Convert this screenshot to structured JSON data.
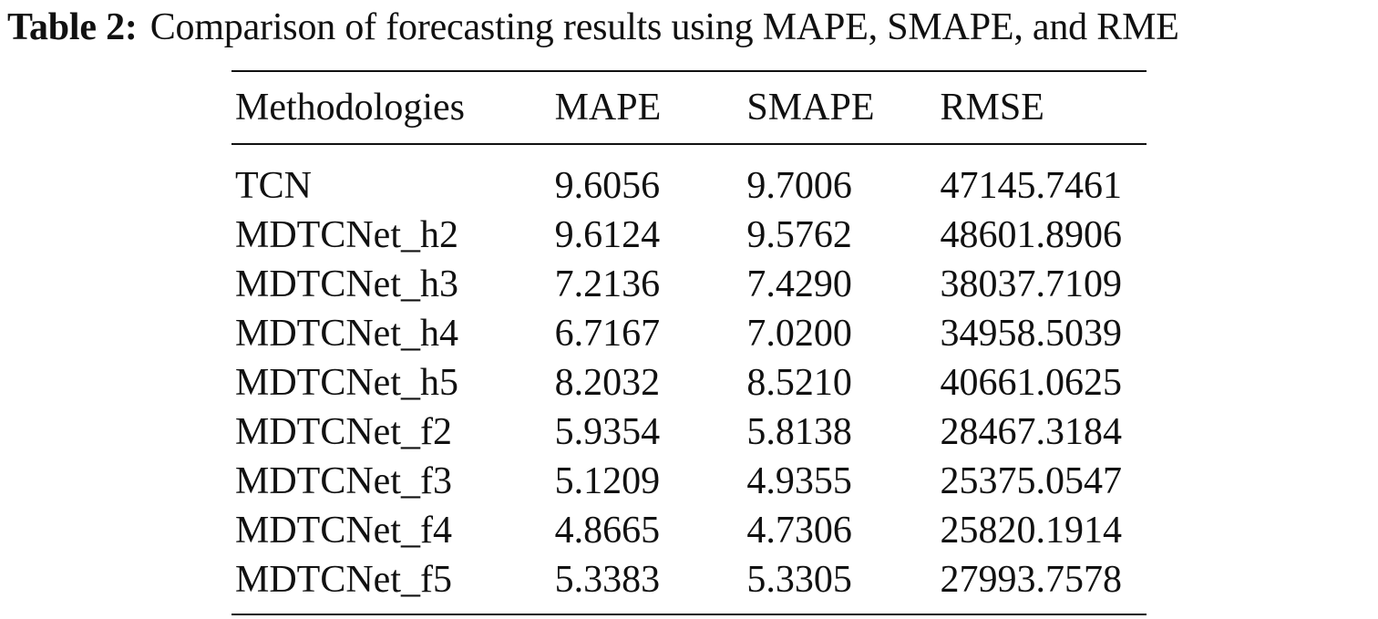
{
  "caption": {
    "label": "Table 2:",
    "text": "Comparison of forecasting results using MAPE, SMAPE, and RME"
  },
  "table": {
    "headers": [
      "Methodologies",
      "MAPE",
      "SMAPE",
      "RMSE"
    ],
    "rows": [
      [
        "TCN",
        "9.6056",
        "9.7006",
        "47145.7461"
      ],
      [
        "MDTCNet_h2",
        "9.6124",
        "9.5762",
        "48601.8906"
      ],
      [
        "MDTCNet_h3",
        "7.2136",
        "7.4290",
        "38037.7109"
      ],
      [
        "MDTCNet_h4",
        "6.7167",
        "7.0200",
        "34958.5039"
      ],
      [
        "MDTCNet_h5",
        "8.2032",
        "8.5210",
        "40661.0625"
      ],
      [
        "MDTCNet_f2",
        "5.9354",
        "5.8138",
        "28467.3184"
      ],
      [
        "MDTCNet_f3",
        "5.1209",
        "4.9355",
        "25375.0547"
      ],
      [
        "MDTCNet_f4",
        "4.8665",
        "4.7306",
        "25820.1914"
      ],
      [
        "MDTCNet_f5",
        "5.3383",
        "5.3305",
        "27993.7578"
      ]
    ]
  }
}
